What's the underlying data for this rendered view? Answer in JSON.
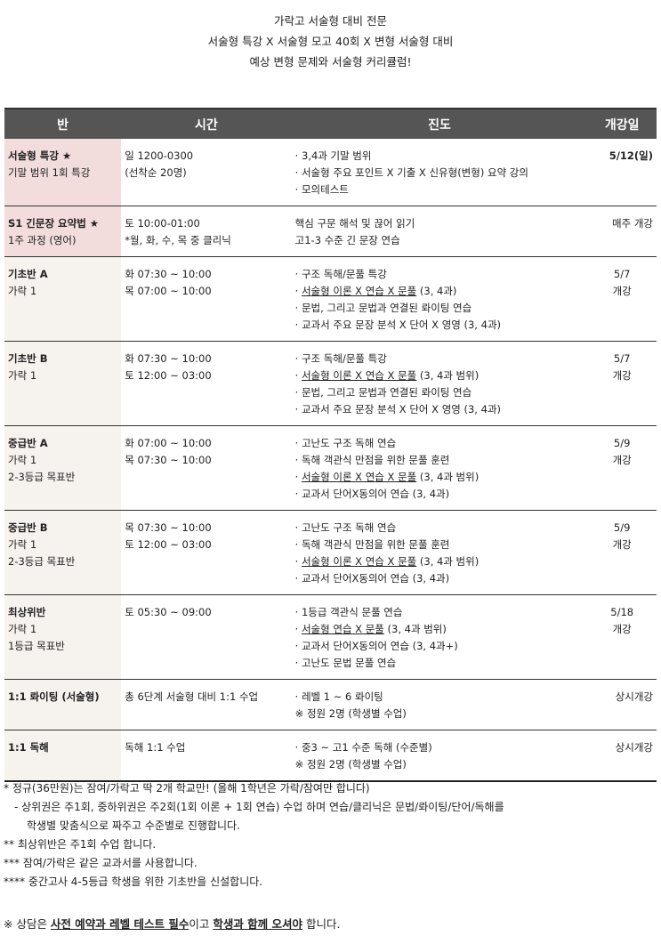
{
  "intro": [
    "가락고 서술형 대비 전문",
    "서술형 특강 X 서술형 모고 40회 X 변형 서술형 대비",
    "예상 변형 문제와 서술형 커리큘럼!"
  ],
  "table": {
    "headers": [
      "반",
      "시간",
      "진도",
      "개강일"
    ],
    "rows": [
      {
        "cls": [
          "서술형 특강 ★",
          "기말 범위 1회 특강"
        ],
        "highlight": true,
        "time": [
          "일 1200-0300",
          "(선착순 20명)"
        ],
        "progress": [
          {
            "b": "· ",
            "u": "",
            "t": "3,4과 기말 범위"
          },
          {
            "b": "· ",
            "u": "",
            "t": "서술형 주요 포인트 X 기출 X 신유형(변형) 요약 강의"
          },
          {
            "b": "· ",
            "u": "",
            "t": "모의테스트"
          }
        ],
        "open": [
          "5/12(일)"
        ],
        "open_bold": true,
        "open_align": "right"
      },
      {
        "cls": [
          "S1 긴문장 요약법 ★",
          "1주 과정 (영어)"
        ],
        "highlight": true,
        "time": [
          "토 10:00-01:00",
          "*월, 화, 수, 목 중 클리닉"
        ],
        "progress": [
          {
            "b": "",
            "u": "",
            "t": "핵심 구문 해석 및 끊어 읽기"
          },
          {
            "b": "",
            "u": "",
            "t": "고1-3 수준 긴 문장 연습"
          }
        ],
        "open": [
          "매주 개강"
        ],
        "open_align": "right"
      },
      {
        "cls": [
          "기초반 A",
          "가락 1"
        ],
        "time": [
          "화 07:30 ~ 10:00",
          "목 07:00 ~ 10:00"
        ],
        "progress": [
          {
            "b": "· ",
            "u": "",
            "t": "구조 독해/문풀 특강"
          },
          {
            "b": "· ",
            "u": "서술형 이론 X 연습 X 문풀",
            "t": " (3, 4과)"
          },
          {
            "b": "· ",
            "u": "",
            "t": "문법, 그리고 문법과 연결된 롸이팅 연습"
          },
          {
            "b": "· ",
            "u": "",
            "t": "교과서 주요 문장 분석 X 단어 X 영영 (3, 4과)"
          }
        ],
        "open": [
          "5/7",
          "개강"
        ]
      },
      {
        "cls": [
          "기초반 B",
          "가락 1"
        ],
        "time": [
          "화 07:30 ~ 10:00",
          "토 12:00 ~ 03:00"
        ],
        "progress": [
          {
            "b": "· ",
            "u": "",
            "t": "구조 독해/문풀 특강"
          },
          {
            "b": "· ",
            "u": "서술형 이론 X 연습 X 문풀",
            "t": " (3, 4과 범위)"
          },
          {
            "b": "· ",
            "u": "",
            "t": "문법, 그리고 문법과 연결된 롸이팅 연습"
          },
          {
            "b": "· ",
            "u": "",
            "t": "교과서 주요 문장 분석 X 단어 X 영영 (3, 4과)"
          }
        ],
        "open": [
          "5/7",
          "개강"
        ]
      },
      {
        "cls": [
          "중급반 A",
          "가락 1",
          "2-3등급 목표반"
        ],
        "time": [
          "화 07:00 ~ 10:00",
          "목 07:30 ~ 10:00"
        ],
        "progress": [
          {
            "b": "· ",
            "u": "",
            "t": "고난도 구조 독해 연습"
          },
          {
            "b": "· ",
            "u": "",
            "t": "독해 객관식 만점을 위한 문풀 훈련"
          },
          {
            "b": "· ",
            "u": "서술형 이론 X 연습 X 문풀",
            "t": " (3, 4과 범위)"
          },
          {
            "b": "· ",
            "u": "",
            "t": "교과서 단어X동의어 연습 (3, 4과)"
          }
        ],
        "open": [
          "5/9",
          "개강"
        ]
      },
      {
        "cls": [
          "중급반 B",
          "가락 1",
          "2-3등급 목표반"
        ],
        "time": [
          "목 07:30 ~ 10:00",
          "토 12:00 ~ 03:00"
        ],
        "progress": [
          {
            "b": "· ",
            "u": "",
            "t": "고난도 구조 독해 연습"
          },
          {
            "b": "· ",
            "u": "",
            "t": "독해 객관식 만점을 위한 문풀 훈련"
          },
          {
            "b": "· ",
            "u": "서술형 이론 X 연습 X 문풀",
            "t": " (3, 4과 범위)"
          },
          {
            "b": "· ",
            "u": "",
            "t": "교과서 단어X동의어 연습 (3, 4과)"
          }
        ],
        "open": [
          "5/9",
          "개강"
        ]
      },
      {
        "cls": [
          "최상위반",
          "가락 1",
          "1등급 목표반"
        ],
        "time": [
          "토 05:30 ~ 09:00"
        ],
        "progress": [
          {
            "b": "· ",
            "u": "",
            "t": "1등급 객관식 문풀 연습"
          },
          {
            "b": "· ",
            "u": "서술형 연습 X 문풀",
            "t": " (3, 4과 범위)"
          },
          {
            "b": "· ",
            "u": "",
            "t": "교과서 단어X동의어 연습 (3, 4과+)"
          },
          {
            "b": "· ",
            "u": "",
            "t": "고난도 문법 문풀 연습"
          }
        ],
        "open": [
          "5/18",
          "개강"
        ]
      },
      {
        "cls": [
          "1:1 롸이팅 (서술형)"
        ],
        "time": [
          "총 6단계 서술형 대비 1:1 수업"
        ],
        "progress": [
          {
            "b": "· ",
            "u": "",
            "t": "레벨 1 ~ 6 롸이팅"
          },
          {
            "b": "",
            "u": "",
            "t": "※ 정원 2명 (학생별 수업)"
          }
        ],
        "open": [
          "상시개강"
        ],
        "open_align": "right"
      },
      {
        "cls": [
          "1:1 독해"
        ],
        "time": [
          "독해 1:1 수업"
        ],
        "progress": [
          {
            "b": "· ",
            "u": "",
            "t": "중3 ~ 고1 수준 독해 (수준별)"
          },
          {
            "b": "",
            "u": "",
            "t": "※ 정원 2명 (학생별 수업)"
          }
        ],
        "open": [
          "상시개강"
        ],
        "open_align": "right"
      }
    ]
  },
  "notes": [
    "* 정규(36만원)는 잠여/가락고 딱 2개 학교만! (올해 1학년은 가락/잠여만 합니다)",
    "- 상위권은 주1회, 중하위권은 주2회(1회 이론 + 1회 연습) 수업 하며 연습/클리닉은 문법/롸이팅/단어/독해를",
    "학생별 맞춤식으로 짜주고 수준별로 진행합니다.",
    "** 최상위반은 주1회 수업 합니다.",
    "*** 잠여/가락은 같은 교과서를 사용합니다.",
    "**** 중간고사 4-5등급 학생을 위한 기초반을 신설합니다."
  ],
  "consult": {
    "pre": "※ 상담은 ",
    "b1": "사전 예약과 레벨 테스트 필수",
    "mid": "이고 ",
    "b2": "학생과 함께 오셔야",
    "post": " 합니다."
  }
}
